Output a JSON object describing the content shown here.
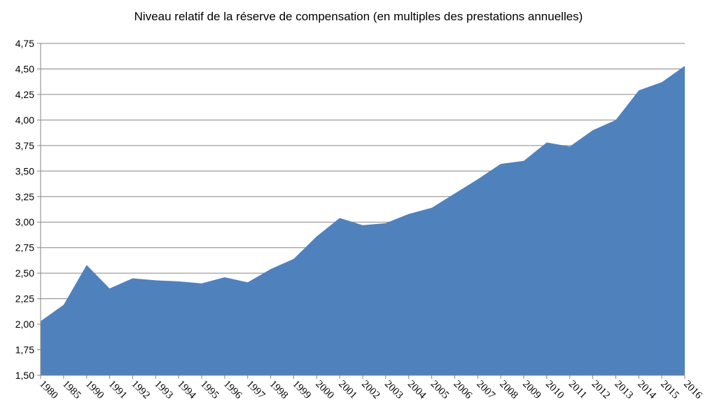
{
  "chart_data": {
    "type": "area",
    "title": "Niveau relatif de la réserve de compensation (en multiples des prestations annuelles)",
    "xlabel": "",
    "ylabel": "",
    "categories": [
      "1980",
      "1985",
      "1990",
      "1991",
      "1992",
      "1993",
      "1994",
      "1995",
      "1996",
      "1997",
      "1998",
      "1999",
      "2000",
      "2001",
      "2002",
      "2003",
      "2004",
      "2005",
      "2006",
      "2007",
      "2008",
      "2009",
      "2010",
      "2011",
      "2012",
      "2013",
      "2014",
      "2015",
      "2016"
    ],
    "values": [
      2.03,
      2.19,
      2.58,
      2.35,
      2.45,
      2.43,
      2.42,
      2.4,
      2.46,
      2.41,
      2.54,
      2.64,
      2.86,
      3.04,
      2.97,
      2.99,
      3.08,
      3.14,
      3.28,
      3.42,
      3.57,
      3.6,
      3.78,
      3.74,
      3.9,
      4.0,
      4.29,
      4.37,
      4.53
    ],
    "ylim": [
      1.5,
      4.75
    ],
    "yticks": [
      "1,50",
      "1,75",
      "2,00",
      "2,25",
      "2,50",
      "2,75",
      "3,00",
      "3,25",
      "3,50",
      "3,75",
      "4,00",
      "4,25",
      "4,50",
      "4,75"
    ],
    "grid": true,
    "colors": {
      "area": "#4f81bd",
      "grid": "#868686",
      "axis": "#868686"
    }
  }
}
